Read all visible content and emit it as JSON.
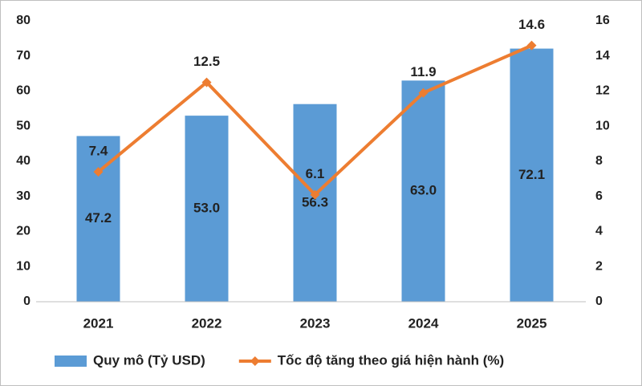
{
  "chart_data": {
    "type": "bar",
    "categories": [
      "2021",
      "2022",
      "2023",
      "2024",
      "2025"
    ],
    "series": [
      {
        "name": "Quy mô (Tỷ USD)",
        "type": "bar",
        "color": "#5b9bd5",
        "values": [
          47.2,
          53.0,
          56.3,
          63.0,
          72.1
        ],
        "value_labels": [
          "47.2",
          "53.0",
          "56.3",
          "63.0",
          "72.1"
        ]
      },
      {
        "name": "Tốc độ tăng theo giá hiện hành (%)",
        "type": "line",
        "axis": "y2",
        "color": "#ed7d31",
        "values": [
          7.4,
          12.5,
          6.1,
          11.9,
          14.6
        ]
      }
    ],
    "ylim": [
      0,
      80
    ],
    "yticks": [
      0,
      10,
      20,
      30,
      40,
      50,
      60,
      70,
      80
    ],
    "y2lim": [
      0,
      16
    ],
    "y2ticks": [
      0,
      2,
      4,
      6,
      8,
      10,
      12,
      14,
      16
    ],
    "grid": false,
    "legend": "bottom"
  }
}
